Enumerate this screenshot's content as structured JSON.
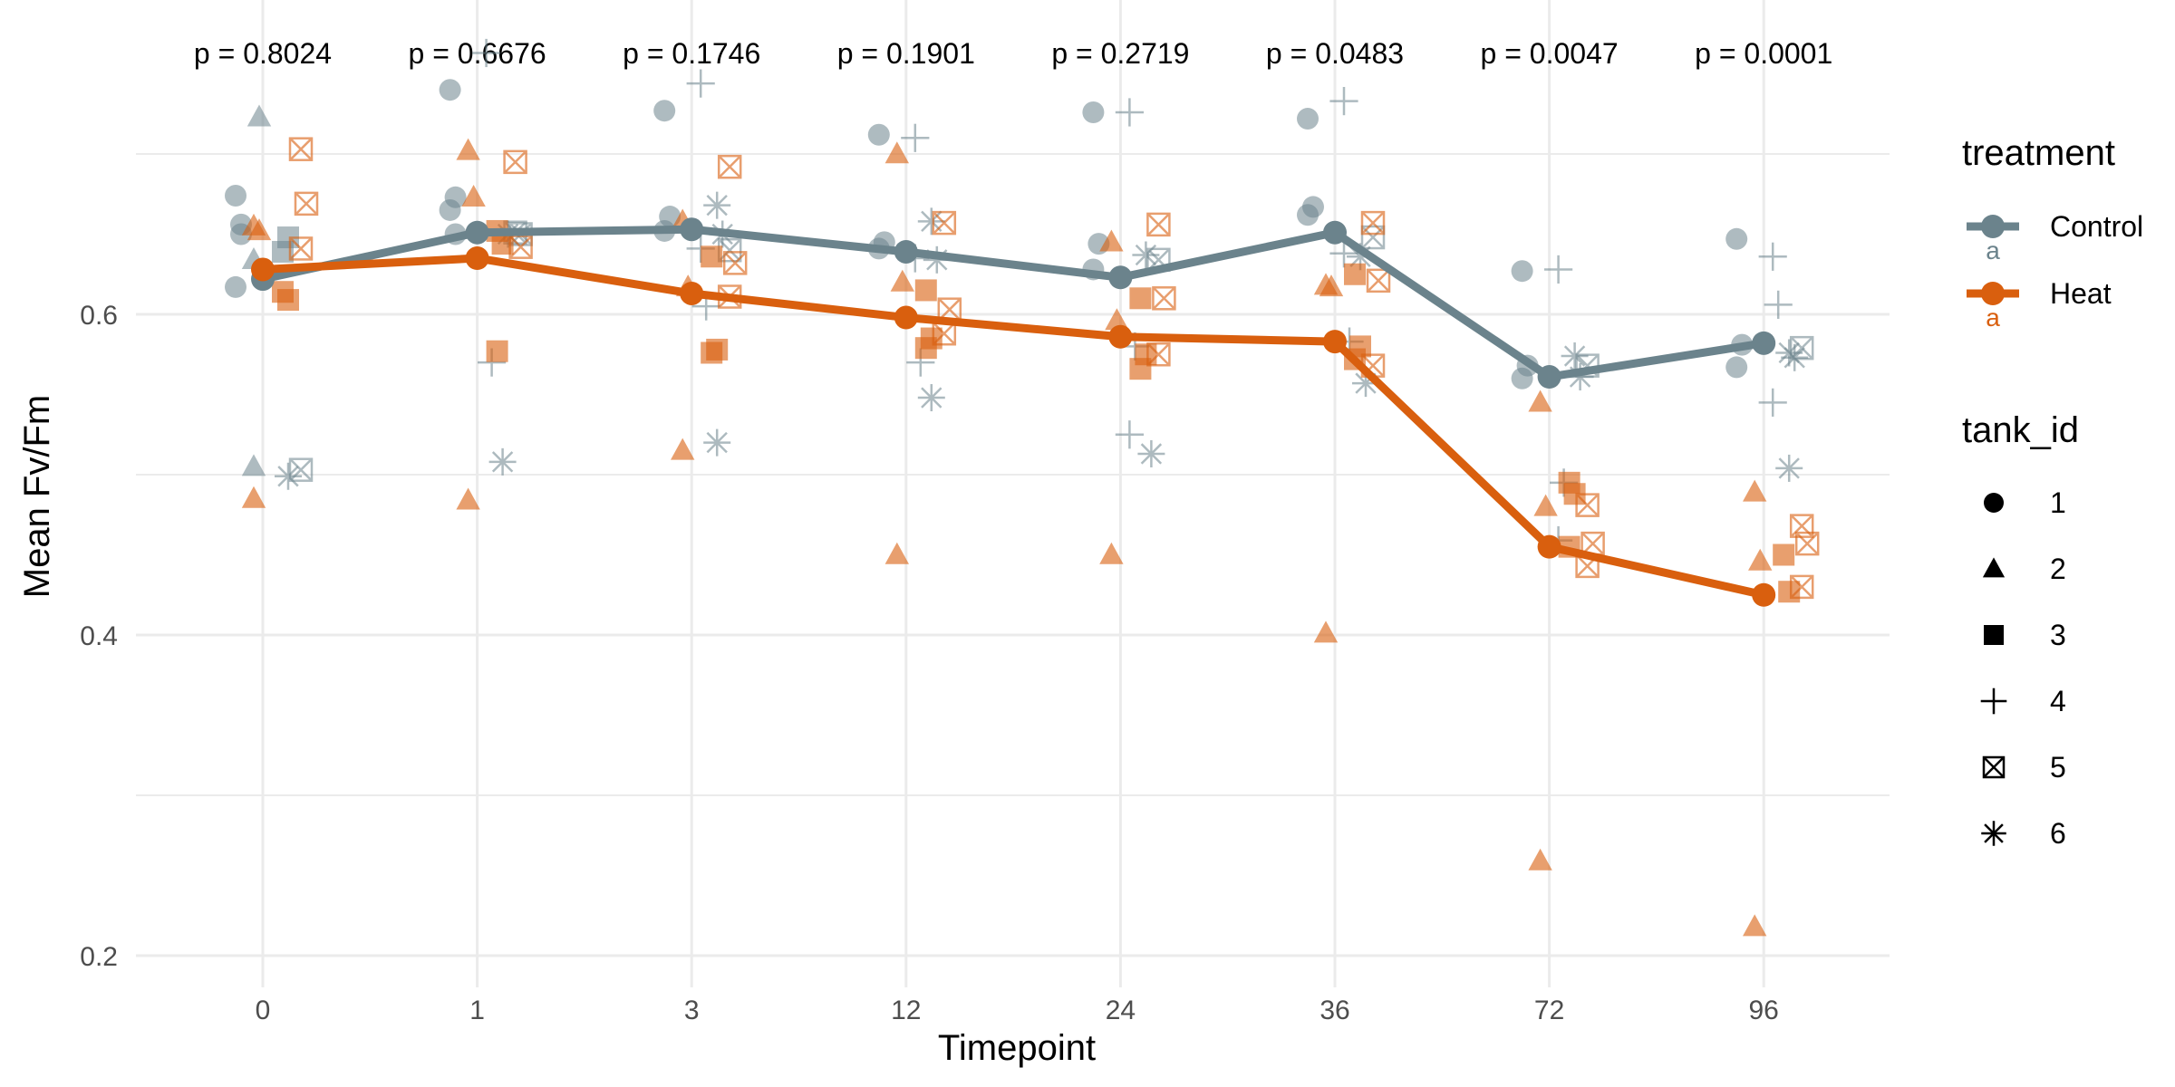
{
  "chart_data": {
    "type": "line",
    "title": "",
    "xlabel": "Timepoint",
    "ylabel": "Mean Fv/Fm",
    "categories": [
      "0",
      "1",
      "3",
      "12",
      "24",
      "36",
      "72",
      "96"
    ],
    "ylim": [
      0.19,
      0.79
    ],
    "y_ticks": [
      0.2,
      0.4,
      0.6
    ],
    "y_tick_labels": [
      "0.2",
      "0.4",
      "0.6"
    ],
    "grid": true,
    "p_values": [
      "p = 0.8024",
      "p = 0.6676",
      "p = 0.1746",
      "p = 0.1901",
      "p = 0.2719",
      "p = 0.0483",
      "p = 0.0047",
      "p = 0.0001"
    ],
    "series": [
      {
        "name": "Control",
        "color": "#6B838C",
        "values": [
          0.622,
          0.651,
          0.653,
          0.639,
          0.623,
          0.651,
          0.561,
          0.582
        ],
        "points": [
          [
            [
              0.674,
              0.656,
              0.617,
              0.65
            ],
            [
              0.634,
              0.723,
              0.505
            ],
            [
              0.639,
              0.648
            ],
            [],
            [
              0.503
            ],
            [
              0.499
            ]
          ],
          [
            [
              0.74,
              0.673,
              0.665,
              0.65
            ],
            [],
            [],
            [
              0.763,
              0.57
            ],
            [
              0.651,
              0.65
            ],
            [
              0.508,
              0.65
            ]
          ],
          [
            [
              0.727,
              0.661,
              0.652
            ],
            [],
            [],
            [
              0.744,
              0.605,
              0.641
            ],
            [
              0.64
            ],
            [
              0.668,
              0.65,
              0.52
            ]
          ],
          [
            [
              0.712,
              0.645,
              0.641
            ],
            [],
            [],
            [
              0.71,
              0.57,
              0.635
            ],
            [],
            [
              0.658,
              0.634,
              0.548
            ]
          ],
          [
            [
              0.726,
              0.644,
              0.628
            ],
            [],
            [],
            [
              0.726,
              0.58,
              0.525
            ],
            [
              0.634
            ],
            [
              0.637,
              0.513
            ]
          ],
          [
            [
              0.722,
              0.667,
              0.662
            ],
            [],
            [],
            [
              0.733,
              0.583,
              0.638
            ],
            [
              0.648
            ],
            [
              0.636,
              0.557
            ]
          ],
          [
            [
              0.627,
              0.568,
              0.56
            ],
            [],
            [],
            [
              0.628,
              0.495,
              0.459
            ],
            [
              0.568
            ],
            [
              0.574,
              0.561
            ]
          ],
          [
            [
              0.647,
              0.581,
              0.567
            ],
            [],
            [],
            [
              0.636,
              0.606,
              0.545
            ],
            [
              0.579
            ],
            [
              0.576,
              0.573,
              0.504
            ]
          ]
        ]
      },
      {
        "name": "Heat",
        "color": "#D95F0E",
        "values": [
          0.628,
          0.635,
          0.613,
          0.598,
          0.586,
          0.583,
          0.455,
          0.425
        ],
        "points": [
          [
            [],
            [
              0.655,
              0.652,
              0.485
            ],
            [
              0.614,
              0.609
            ],
            [],
            [
              0.703,
              0.669,
              0.641
            ],
            []
          ],
          [
            [],
            [
              0.702,
              0.673,
              0.484
            ],
            [
              0.652,
              0.644,
              0.577
            ],
            [],
            [
              0.695,
              0.642
            ],
            []
          ],
          [
            [],
            [
              0.658,
              0.617,
              0.515
            ],
            [
              0.636,
              0.578,
              0.576
            ],
            [],
            [
              0.692,
              0.632,
              0.611
            ],
            []
          ],
          [
            [],
            [
              0.7,
              0.62,
              0.45
            ],
            [
              0.615,
              0.585,
              0.579
            ],
            [],
            [
              0.657,
              0.603,
              0.588
            ],
            []
          ],
          [
            [],
            [
              0.645,
              0.596,
              0.45
            ],
            [
              0.61,
              0.575,
              0.566
            ],
            [],
            [
              0.656,
              0.61,
              0.575
            ],
            []
          ],
          [
            [],
            [
              0.618,
              0.617,
              0.401
            ],
            [
              0.625,
              0.58,
              0.572
            ],
            [],
            [
              0.657,
              0.621,
              0.568
            ],
            []
          ],
          [
            [],
            [
              0.545,
              0.48,
              0.259
            ],
            [
              0.495,
              0.488,
              0.455
            ],
            [],
            [
              0.481,
              0.457,
              0.443
            ],
            []
          ],
          [
            [],
            [
              0.489,
              0.446,
              0.218
            ],
            [
              0.45,
              0.427
            ],
            [],
            [
              0.468,
              0.457,
              0.43
            ],
            []
          ]
        ]
      }
    ],
    "group_letters": [
      {
        "series": "Control",
        "text": "a"
      },
      {
        "series": "Heat",
        "text": "a"
      }
    ],
    "legends": {
      "treatment": {
        "title": "treatment",
        "items": [
          {
            "label": "Control",
            "color": "#6B838C"
          },
          {
            "label": "Heat",
            "color": "#D95F0E"
          }
        ]
      },
      "tank_id": {
        "title": "tank_id",
        "items": [
          {
            "label": "1",
            "shape": "circle"
          },
          {
            "label": "2",
            "shape": "triangle"
          },
          {
            "label": "3",
            "shape": "square"
          },
          {
            "label": "4",
            "shape": "plus"
          },
          {
            "label": "5",
            "shape": "square-cross"
          },
          {
            "label": "6",
            "shape": "asterisk"
          }
        ]
      },
      "placement": "right"
    }
  }
}
